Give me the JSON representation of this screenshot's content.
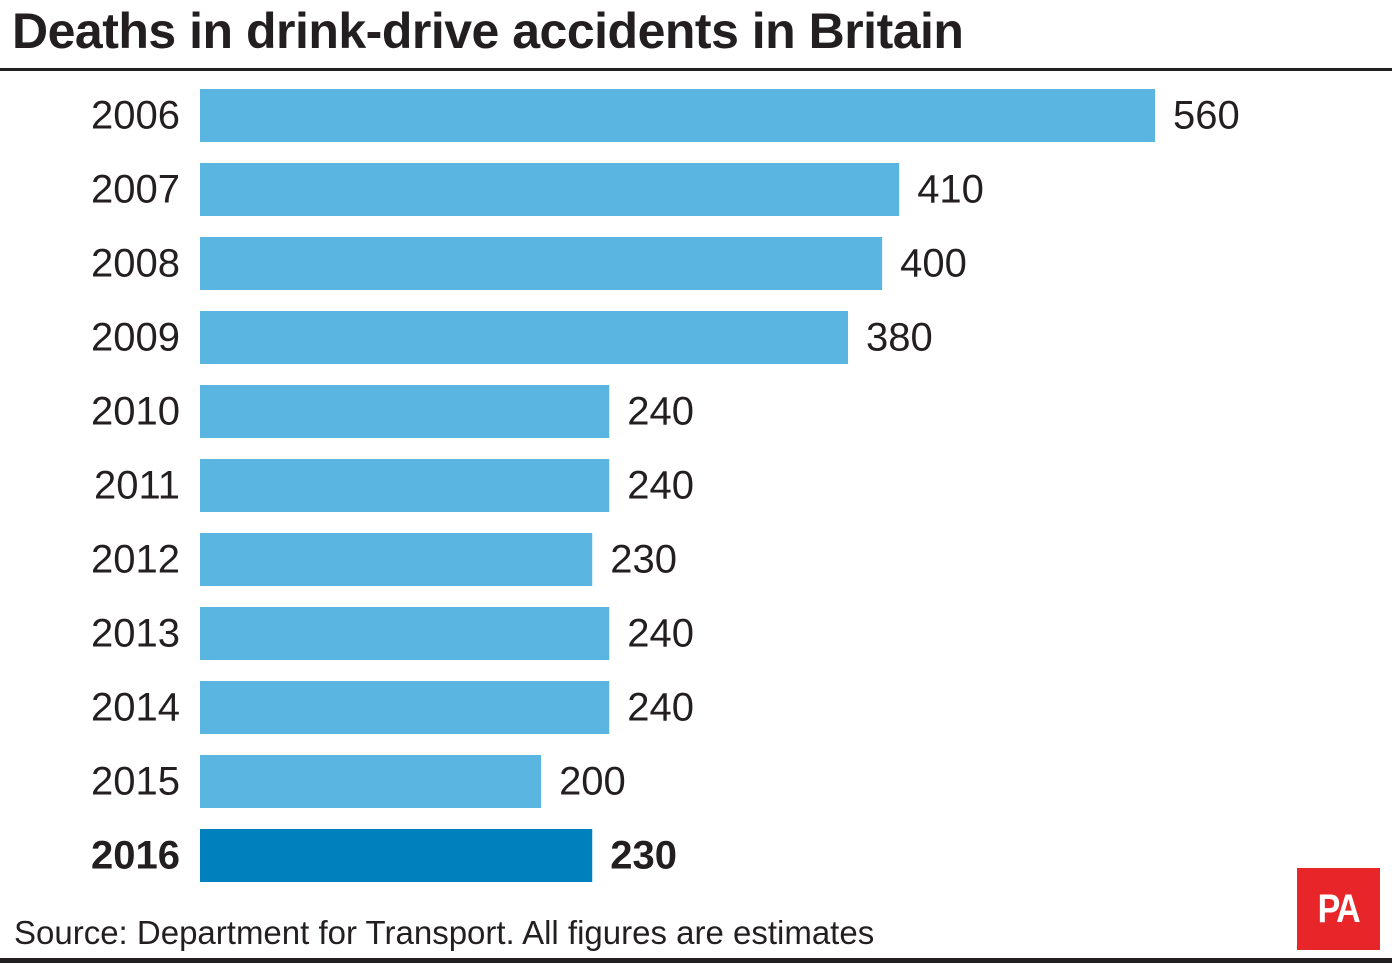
{
  "title": "Deaths in drink-drive accidents in Britain",
  "source": "Source: Department for Transport. All figures are estimates",
  "logo": {
    "text": "PA",
    "color": "#e8262a"
  },
  "colors": {
    "bar": "#5ab6e0",
    "highlight_bar": "#0080bc",
    "text": "#231f20"
  },
  "chart_data": {
    "type": "bar",
    "orientation": "horizontal",
    "title": "Deaths in drink-drive accidents in Britain",
    "categories": [
      "2006",
      "2007",
      "2008",
      "2009",
      "2010",
      "2011",
      "2012",
      "2013",
      "2014",
      "2015",
      "2016"
    ],
    "values": [
      560,
      410,
      400,
      380,
      240,
      240,
      230,
      240,
      240,
      200,
      230
    ],
    "value_labels": [
      "560",
      "410",
      "400",
      "380",
      "240",
      "240",
      "230",
      "240",
      "240",
      "200",
      "230"
    ],
    "highlight": "2016",
    "xlim": [
      0,
      560
    ],
    "grid": false,
    "legend": "none"
  }
}
